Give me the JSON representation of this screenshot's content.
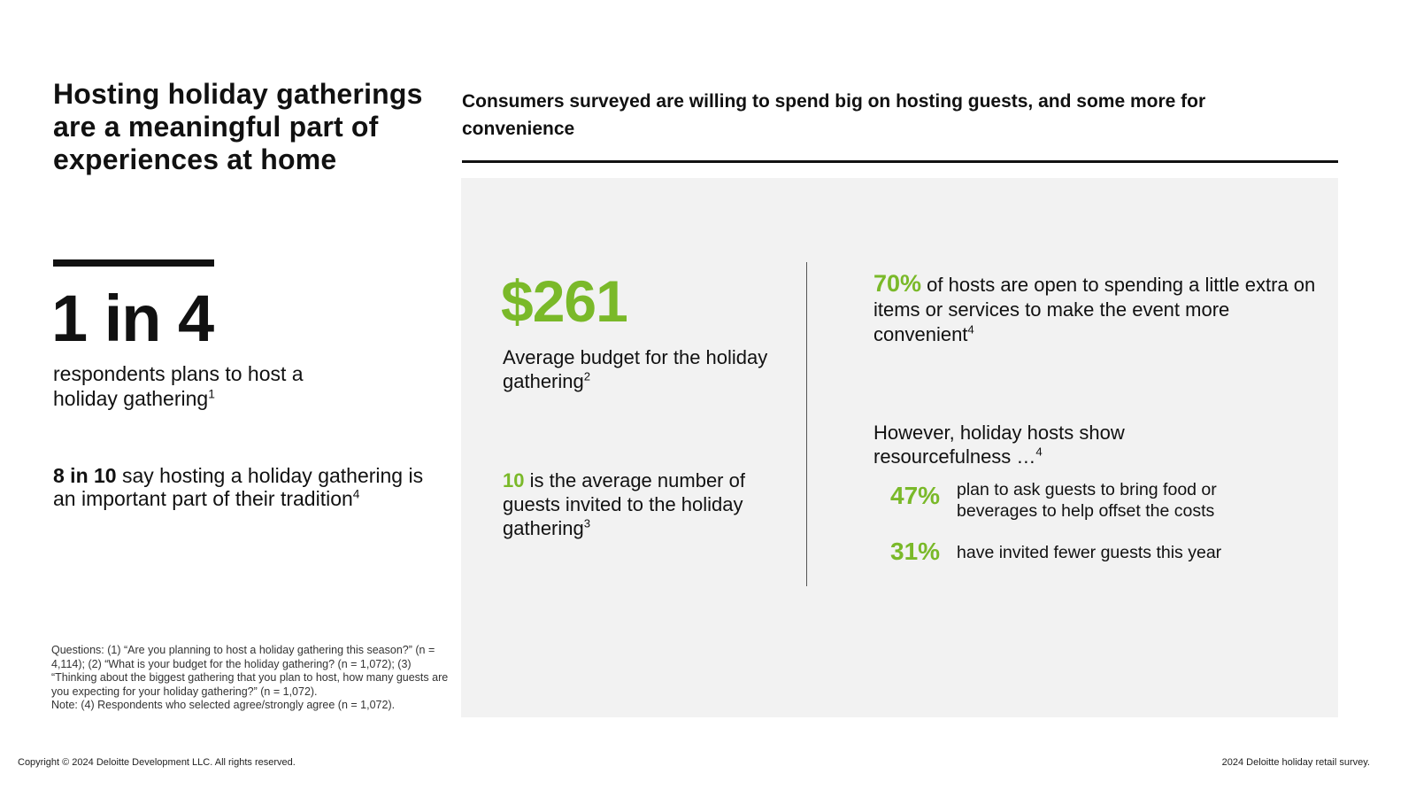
{
  "left": {
    "title": "Hosting holiday gatherings are a meaningful part of experiences at home",
    "big_stat": "1 in 4",
    "big_stat_text": "respondents plans to host a holiday gathering",
    "big_stat_note": "1",
    "tradition_bold": "8 in 10",
    "tradition_text": " say hosting a holiday gathering is an important part of their tradition",
    "tradition_note": "4",
    "footnotes": [
      "Questions: (1) “Are you planning to host a holiday gathering this season?” (n = 4,114); (2) “What is your budget for the holiday gathering? (n = 1,072); (3) “Thinking about the biggest gathering that you plan to host, how many guests are you expecting for your holiday gathering?” (n = 1,072).",
      "Note: (4) Respondents who selected agree/strongly agree (n = 1,072)."
    ]
  },
  "right": {
    "subtitle": "Consumers surveyed are willing to spend big on hosting guests, and some more for convenience",
    "budget_value": "$261",
    "budget_label": "Average budget for the holiday gathering",
    "budget_note": "2",
    "guests_value": "10",
    "guests_text": " is the average number of guests invited to the holiday gathering",
    "guests_note": "3",
    "hosts_pct": "70%",
    "hosts_text": " of hosts are open to spending a little extra on items or services to make the event more convenient",
    "hosts_note": "4",
    "resourceful_text": "However, holiday hosts show resourcefulness …",
    "resourceful_note": "4",
    "stats": [
      {
        "pct": "47%",
        "text": "plan to ask guests to bring food or beverages to help offset the costs"
      },
      {
        "pct": "31%",
        "text": "have invited fewer guests this year"
      }
    ]
  },
  "footer": {
    "copyright": "Copyright © 2024 Deloitte Development LLC. All rights reserved.",
    "source": "2024 Deloitte holiday retail survey."
  },
  "colors": {
    "accent": "#7ab929",
    "panel": "#f2f2f2",
    "text": "#111111"
  }
}
